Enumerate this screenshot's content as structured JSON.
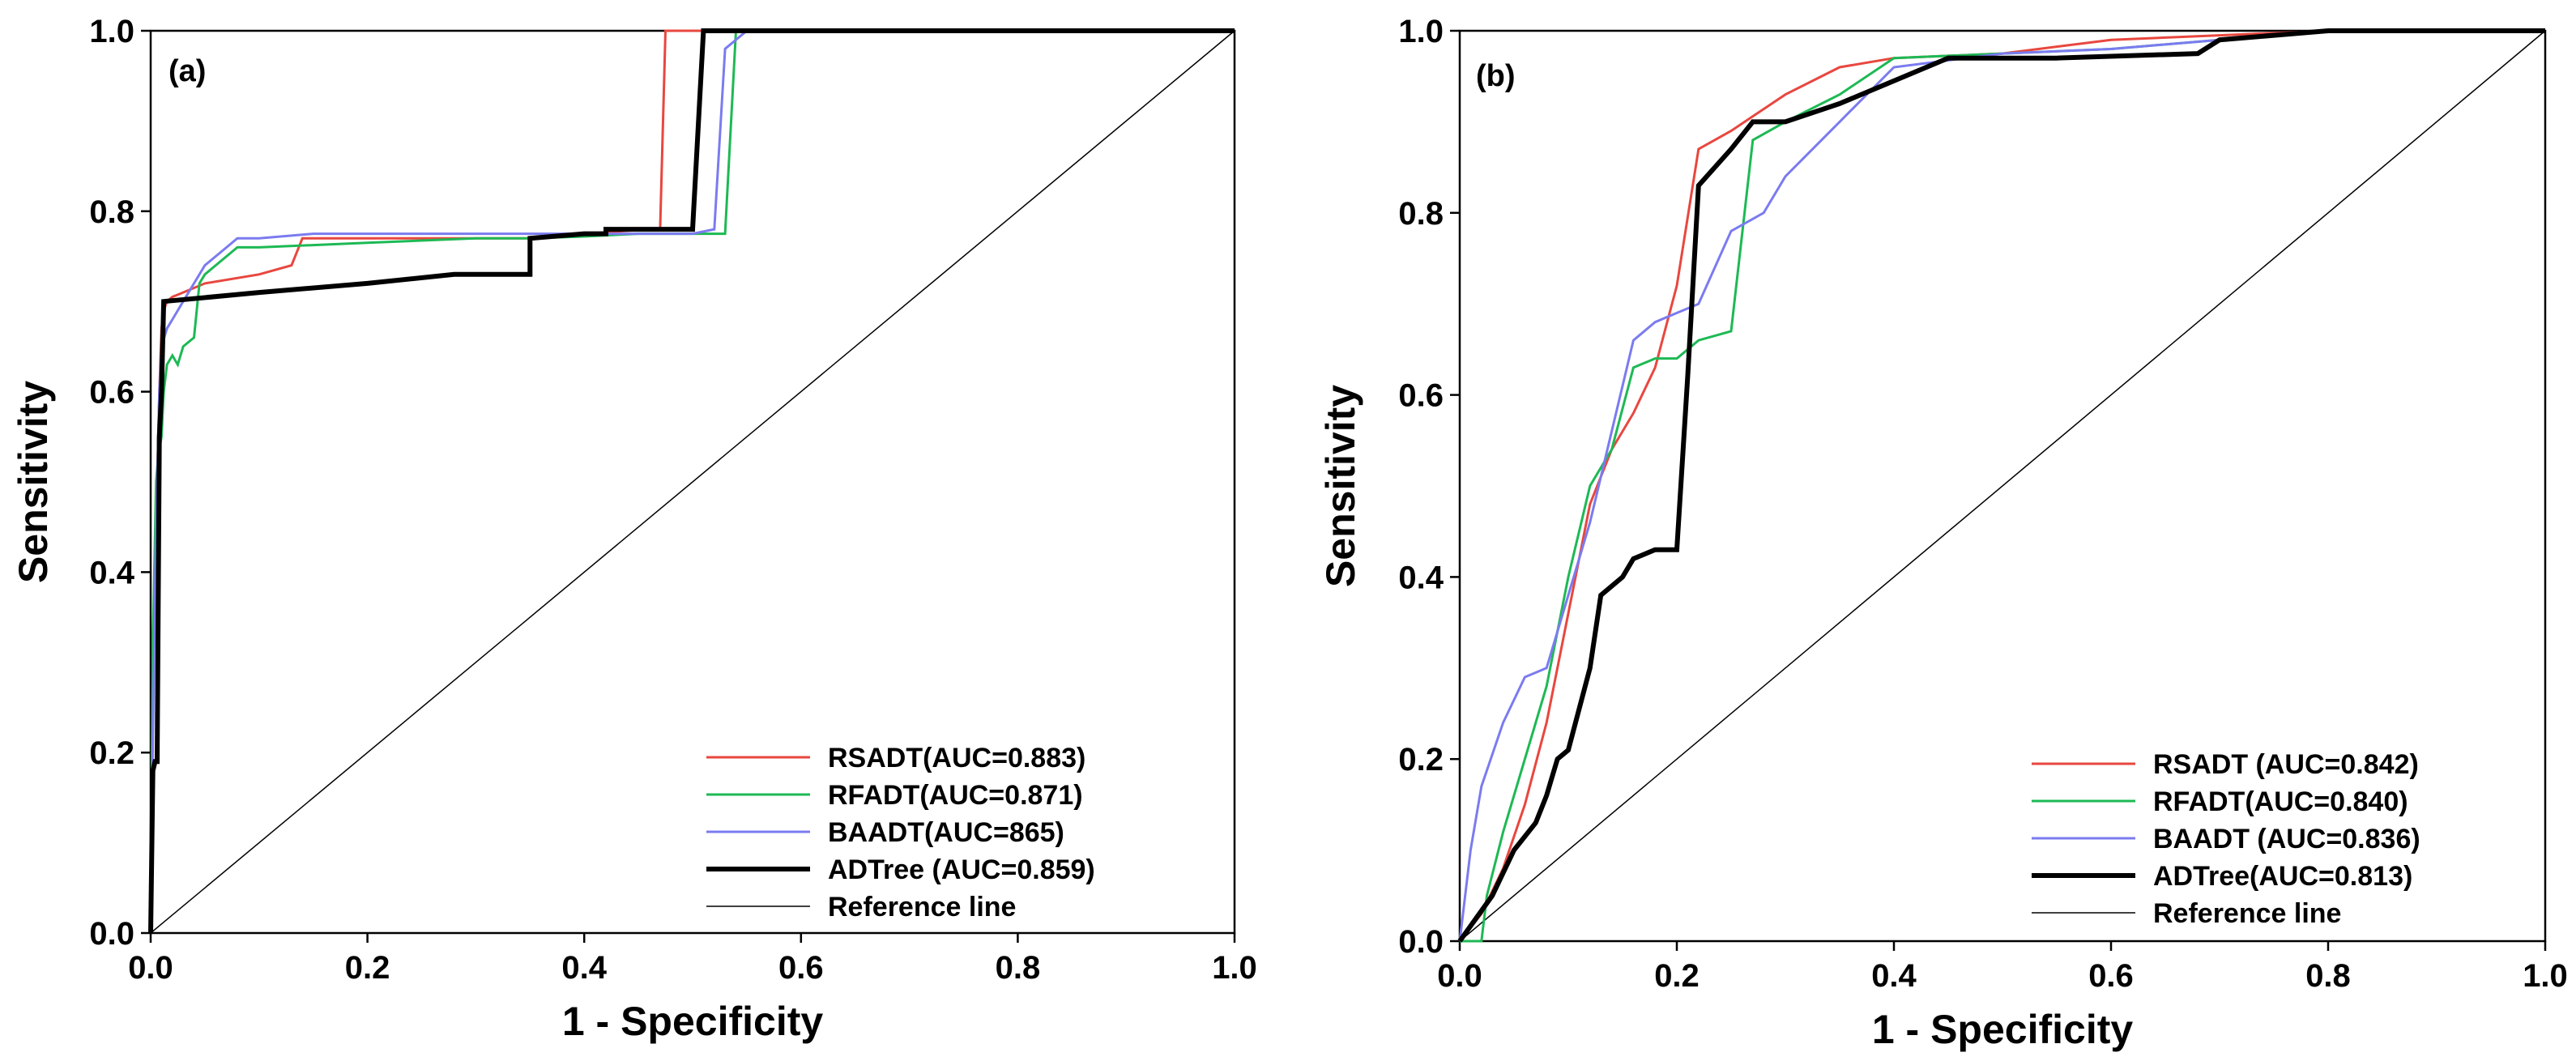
{
  "chart_data": [
    {
      "type": "line",
      "panel_label": "(a)",
      "xlabel": "1 - Specificity",
      "ylabel": "Sensitivity",
      "xlim": [
        0,
        1
      ],
      "ylim": [
        0,
        1
      ],
      "xticks": [
        "0.0",
        "0.2",
        "0.4",
        "0.6",
        "0.8",
        "1.0"
      ],
      "yticks": [
        "0.0",
        "0.2",
        "0.4",
        "0.6",
        "0.8",
        "1.0"
      ],
      "grid": false,
      "legend_position": "bottom-right",
      "series": [
        {
          "name": "RSADT",
          "label": "RSADT(AUC=0.883)",
          "color": "#e8473f",
          "width": 3,
          "x": [
            0,
            0.002,
            0.005,
            0.008,
            0.01,
            0.012,
            0.015,
            0.02,
            0.03,
            0.05,
            0.1,
            0.13,
            0.14,
            0.2,
            0.3,
            0.35,
            0.4,
            0.46,
            0.47,
            0.475,
            0.5,
            0.6,
            1.0
          ],
          "y": [
            0,
            0.3,
            0.45,
            0.6,
            0.67,
            0.69,
            0.7,
            0.705,
            0.71,
            0.72,
            0.73,
            0.74,
            0.77,
            0.77,
            0.77,
            0.77,
            0.775,
            0.78,
            0.78,
            1.0,
            1.0,
            1.0,
            1.0
          ]
        },
        {
          "name": "RFADT",
          "label": "RFADT(AUC=0.871)",
          "color": "#1db954",
          "width": 3,
          "x": [
            0,
            0.002,
            0.005,
            0.007,
            0.01,
            0.012,
            0.015,
            0.02,
            0.025,
            0.03,
            0.04,
            0.045,
            0.05,
            0.06,
            0.08,
            0.1,
            0.2,
            0.3,
            0.35,
            0.4,
            0.45,
            0.5,
            0.53,
            0.54,
            0.6,
            1.0
          ],
          "y": [
            0,
            0.32,
            0.5,
            0.53,
            0.55,
            0.6,
            0.63,
            0.64,
            0.63,
            0.65,
            0.66,
            0.72,
            0.73,
            0.74,
            0.76,
            0.76,
            0.765,
            0.77,
            0.77,
            0.772,
            0.775,
            0.775,
            0.775,
            1.0,
            1.0,
            1.0
          ]
        },
        {
          "name": "BAADT",
          "label": "BAADT(AUC=865)",
          "color": "#7b7bf0",
          "width": 3,
          "x": [
            0,
            0.002,
            0.005,
            0.008,
            0.01,
            0.015,
            0.02,
            0.03,
            0.04,
            0.05,
            0.06,
            0.07,
            0.08,
            0.1,
            0.15,
            0.2,
            0.3,
            0.4,
            0.5,
            0.52,
            0.53,
            0.55,
            0.6,
            1.0
          ],
          "y": [
            0,
            0.22,
            0.45,
            0.6,
            0.65,
            0.67,
            0.68,
            0.7,
            0.72,
            0.74,
            0.75,
            0.76,
            0.77,
            0.77,
            0.775,
            0.775,
            0.775,
            0.775,
            0.775,
            0.78,
            0.98,
            1.0,
            1.0,
            1.0
          ]
        },
        {
          "name": "ADTree",
          "label": "ADTree (AUC=0.859)",
          "color": "#000000",
          "width": 6,
          "x": [
            0,
            0.002,
            0.004,
            0.006,
            0.008,
            0.01,
            0.012,
            0.1,
            0.2,
            0.28,
            0.35,
            0.35,
            0.4,
            0.42,
            0.42,
            0.5,
            0.51,
            0.52,
            0.6,
            1.0
          ],
          "y": [
            0,
            0.18,
            0.19,
            0.19,
            0.55,
            0.6,
            0.7,
            0.71,
            0.72,
            0.73,
            0.73,
            0.77,
            0.775,
            0.775,
            0.78,
            0.78,
            1.0,
            1.0,
            1.0,
            1.0
          ]
        },
        {
          "name": "Reference line",
          "label": "Reference line",
          "color": "#000000",
          "width": 1.5,
          "x": [
            0,
            1
          ],
          "y": [
            0,
            1
          ]
        }
      ]
    },
    {
      "type": "line",
      "panel_label": "(b)",
      "xlabel": "1 - Specificity",
      "ylabel": "Sensitivity",
      "xlim": [
        0,
        1
      ],
      "ylim": [
        0,
        1
      ],
      "xticks": [
        "0.0",
        "0.2",
        "0.4",
        "0.6",
        "0.8",
        "1.0"
      ],
      "yticks": [
        "0.0",
        "0.2",
        "0.4",
        "0.6",
        "0.8",
        "1.0"
      ],
      "grid": false,
      "legend_position": "bottom-right",
      "series": [
        {
          "name": "RSADT",
          "label": "RSADT (AUC=0.842)",
          "color": "#e8473f",
          "width": 3,
          "x": [
            0,
            0.02,
            0.04,
            0.06,
            0.08,
            0.1,
            0.12,
            0.14,
            0.16,
            0.18,
            0.2,
            0.22,
            0.25,
            0.3,
            0.35,
            0.4,
            0.5,
            0.6,
            0.7,
            0.8,
            1.0
          ],
          "y": [
            0,
            0.03,
            0.08,
            0.15,
            0.24,
            0.36,
            0.48,
            0.54,
            0.58,
            0.63,
            0.72,
            0.87,
            0.89,
            0.93,
            0.96,
            0.97,
            0.975,
            0.99,
            0.995,
            1.0,
            1.0
          ]
        },
        {
          "name": "RFADT",
          "label": "RFADT(AUC=0.840)",
          "color": "#1db954",
          "width": 3,
          "x": [
            0,
            0.02,
            0.025,
            0.04,
            0.06,
            0.08,
            0.1,
            0.12,
            0.14,
            0.16,
            0.18,
            0.2,
            0.22,
            0.25,
            0.27,
            0.3,
            0.35,
            0.4,
            0.5,
            0.6,
            0.7,
            0.8,
            1.0
          ],
          "y": [
            0,
            0.0,
            0.05,
            0.12,
            0.2,
            0.28,
            0.4,
            0.5,
            0.54,
            0.63,
            0.64,
            0.64,
            0.66,
            0.67,
            0.88,
            0.9,
            0.93,
            0.97,
            0.975,
            0.98,
            0.99,
            1.0,
            1.0
          ]
        },
        {
          "name": "BAADT",
          "label": "BAADT (AUC=0.836)",
          "color": "#7b7bf0",
          "width": 3,
          "x": [
            0,
            0.01,
            0.02,
            0.04,
            0.06,
            0.08,
            0.1,
            0.12,
            0.14,
            0.16,
            0.18,
            0.2,
            0.22,
            0.25,
            0.28,
            0.3,
            0.35,
            0.4,
            0.5,
            0.6,
            0.7,
            0.8,
            1.0
          ],
          "y": [
            0,
            0.1,
            0.17,
            0.24,
            0.29,
            0.3,
            0.38,
            0.46,
            0.56,
            0.66,
            0.68,
            0.69,
            0.7,
            0.78,
            0.8,
            0.84,
            0.9,
            0.96,
            0.975,
            0.98,
            0.99,
            1.0,
            1.0
          ]
        },
        {
          "name": "ADTree",
          "label": "ADTree(AUC=0.813)",
          "color": "#000000",
          "width": 6,
          "x": [
            0,
            0.03,
            0.05,
            0.07,
            0.08,
            0.09,
            0.1,
            0.12,
            0.13,
            0.15,
            0.16,
            0.18,
            0.2,
            0.21,
            0.22,
            0.25,
            0.27,
            0.3,
            0.35,
            0.45,
            0.55,
            0.68,
            0.7,
            0.8,
            1.0
          ],
          "y": [
            0,
            0.05,
            0.1,
            0.13,
            0.16,
            0.2,
            0.21,
            0.3,
            0.38,
            0.4,
            0.42,
            0.43,
            0.43,
            0.62,
            0.83,
            0.87,
            0.9,
            0.9,
            0.92,
            0.97,
            0.97,
            0.975,
            0.99,
            1.0,
            1.0
          ]
        },
        {
          "name": "Reference line",
          "label": "Reference line",
          "color": "#000000",
          "width": 1.5,
          "x": [
            0,
            1
          ],
          "y": [
            0,
            1
          ]
        }
      ]
    }
  ]
}
